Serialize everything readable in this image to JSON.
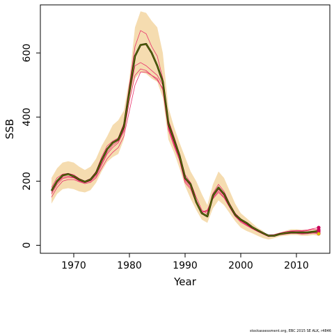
{
  "chart_data": {
    "type": "line",
    "xlabel": "Year",
    "ylabel": "SSB",
    "xlim": [
      1964,
      2016
    ],
    "ylim": [
      -25,
      750
    ],
    "x_ticks": [
      1970,
      1980,
      1990,
      2000,
      2010
    ],
    "y_ticks": [
      0,
      200,
      400,
      600
    ],
    "x_tick_labels": [
      "1970",
      "1980",
      "1990",
      "2000",
      "2010"
    ],
    "y_tick_labels": [
      "0",
      "200",
      "400",
      "600"
    ],
    "grid": false,
    "colors": {
      "band": "#f5dcb0",
      "main": "#1a1a00",
      "main_inner": "#7a9a00",
      "retro": "#e8306a",
      "dot": "#c8005a",
      "last_point": "#e0c000"
    },
    "years": [
      1966,
      1967,
      1968,
      1969,
      1970,
      1971,
      1972,
      1973,
      1974,
      1975,
      1976,
      1977,
      1978,
      1979,
      1980,
      1981,
      1982,
      1983,
      1984,
      1985,
      1986,
      1987,
      1988,
      1989,
      1990,
      1991,
      1992,
      1993,
      1994,
      1995,
      1996,
      1997,
      1998,
      1999,
      2000,
      2001,
      2002,
      2003,
      2004,
      2005,
      2006,
      2007,
      2008,
      2009,
      2010,
      2011,
      2012,
      2013,
      2014
    ],
    "band_upper": [
      210,
      240,
      258,
      262,
      258,
      245,
      235,
      245,
      270,
      310,
      340,
      375,
      390,
      420,
      520,
      680,
      730,
      725,
      700,
      680,
      600,
      430,
      370,
      320,
      275,
      230,
      200,
      160,
      125,
      190,
      230,
      210,
      170,
      130,
      100,
      85,
      70,
      55,
      45,
      30,
      35,
      40,
      45,
      50,
      50,
      48,
      48,
      50,
      52
    ],
    "band_lower": [
      130,
      160,
      175,
      178,
      175,
      168,
      165,
      172,
      195,
      230,
      260,
      275,
      285,
      330,
      450,
      520,
      540,
      535,
      520,
      510,
      460,
      330,
      290,
      240,
      185,
      145,
      110,
      80,
      70,
      115,
      140,
      125,
      100,
      75,
      55,
      45,
      38,
      30,
      22,
      18,
      22,
      28,
      30,
      32,
      32,
      30,
      30,
      32,
      30
    ],
    "series": [
      {
        "values": [
          170,
          200,
          218,
          222,
          215,
          205,
          198,
          205,
          225,
          265,
          300,
          320,
          330,
          370,
          480,
          590,
          625,
          628,
          600,
          560,
          510,
          380,
          330,
          280,
          210,
          190,
          135,
          100,
          90,
          155,
          180,
          160,
          125,
          95,
          80,
          70,
          57,
          47,
          38,
          30,
          30,
          35,
          38,
          40,
          40,
          40,
          40,
          42,
          44
        ]
      },
      {
        "values": [
          180,
          210,
          222,
          224,
          220,
          208,
          200,
          208,
          230,
          275,
          310,
          325,
          335,
          380,
          500,
          620,
          670,
          660,
          620,
          590,
          520,
          390,
          340,
          285,
          220,
          195,
          150,
          110,
          98,
          162,
          190,
          168,
          130,
          100,
          82,
          72,
          58,
          48,
          40,
          32,
          33,
          38,
          42,
          45,
          46,
          46,
          48,
          52,
          55
        ]
      },
      {
        "values": [
          160,
          190,
          208,
          212,
          210,
          200,
          195,
          200,
          215,
          250,
          285,
          305,
          320,
          355,
          450,
          530,
          550,
          545,
          530,
          515,
          490,
          365,
          315,
          270,
          200,
          180,
          140,
          103,
          110,
          148,
          170,
          150,
          120,
          92,
          75,
          64,
          53,
          44,
          36,
          28,
          30,
          34,
          36,
          38,
          38,
          36,
          38,
          40,
          38
        ]
      },
      {
        "values": [
          165,
          195,
          212,
          215,
          212,
          202,
          196,
          202,
          220,
          255,
          290,
          312,
          325,
          360,
          470,
          560,
          570,
          560,
          545,
          530,
          500,
          370,
          320,
          272,
          205,
          185,
          138,
          105,
          105,
          152,
          175,
          155,
          122,
          93,
          77,
          66,
          55,
          45,
          37,
          29,
          31,
          36,
          40,
          43,
          45,
          44,
          46,
          50,
          48
        ]
      },
      {
        "values": [
          150,
          180,
          200,
          205,
          205,
          198,
          192,
          196,
          210,
          240,
          270,
          290,
          305,
          340,
          420,
          500,
          540,
          540,
          530,
          520,
          485,
          360,
          310,
          265,
          195,
          175,
          132,
          102,
          108,
          145,
          165,
          148,
          118,
          90,
          72,
          62,
          52,
          43,
          35,
          27,
          29,
          33,
          35,
          37,
          37,
          35,
          36,
          38,
          36
        ]
      }
    ],
    "footnote": "stockassessment.org, EBC 2015 SE ALK, r4846"
  }
}
